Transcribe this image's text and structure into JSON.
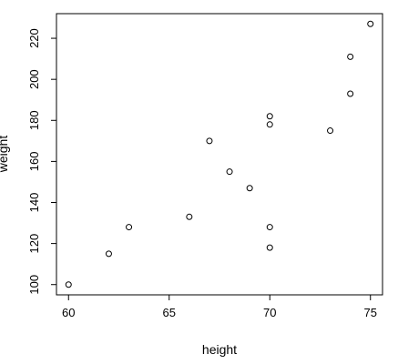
{
  "chart_data": {
    "type": "scatter",
    "title": "",
    "xlabel": "height",
    "ylabel": "weight",
    "xlim": [
      59.4,
      75.6
    ],
    "ylim": [
      95.0,
      232.0
    ],
    "x_ticks": [
      60,
      65,
      70,
      75
    ],
    "y_ticks": [
      100,
      120,
      140,
      160,
      180,
      200,
      220
    ],
    "grid": false,
    "legend": "none",
    "marker": "open-circle",
    "points": [
      {
        "x": 60,
        "y": 100
      },
      {
        "x": 62,
        "y": 115
      },
      {
        "x": 63,
        "y": 128
      },
      {
        "x": 66,
        "y": 133
      },
      {
        "x": 67,
        "y": 170
      },
      {
        "x": 68,
        "y": 155
      },
      {
        "x": 69,
        "y": 147
      },
      {
        "x": 70,
        "y": 118
      },
      {
        "x": 70,
        "y": 128
      },
      {
        "x": 70,
        "y": 178
      },
      {
        "x": 70,
        "y": 182
      },
      {
        "x": 73,
        "y": 175
      },
      {
        "x": 74,
        "y": 193
      },
      {
        "x": 74,
        "y": 211
      },
      {
        "x": 75,
        "y": 227
      }
    ]
  }
}
